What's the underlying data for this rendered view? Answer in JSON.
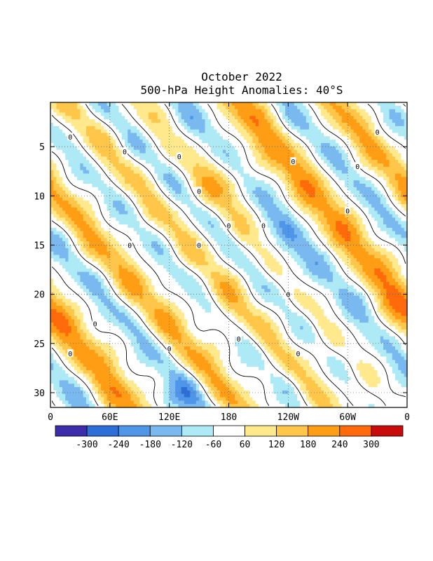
{
  "chart_data": {
    "type": "heatmap",
    "title": "October 2022",
    "subtitle": "500-hPa Height Anomalies: 40°S",
    "xlabel": "",
    "ylabel": "",
    "x_ticks": [
      "0",
      "60E",
      "120E",
      "180",
      "120W",
      "60W",
      "0"
    ],
    "y_ticks": [
      "5",
      "10",
      "15",
      "20",
      "25",
      "30"
    ],
    "y_range": [
      1,
      31
    ],
    "x_range_deg": [
      0,
      360
    ],
    "grid": "dotted",
    "contour_label": "0",
    "legend": {
      "placement": "bottom",
      "labels": [
        "-300",
        "-240",
        "-180",
        "-120",
        "-60",
        "60",
        "120",
        "180",
        "240",
        "300"
      ],
      "colors": [
        "#3c2daa",
        "#2e6ed8",
        "#4f95e8",
        "#7ab8f0",
        "#aeeaf5",
        "#ffffff",
        "#ffe98c",
        "#ffc64a",
        "#ff9e14",
        "#ff6a0a",
        "#c80c0c"
      ]
    },
    "bands": [
      {
        "lon0": 20,
        "day0": 1,
        "slope_deg_per_day": 8.5,
        "halfwidth_deg": 14,
        "value": 150
      },
      {
        "lon0": 55,
        "day0": 1,
        "slope_deg_per_day": 9,
        "halfwidth_deg": 12,
        "value": -130
      },
      {
        "lon0": 95,
        "day0": 1,
        "slope_deg_per_day": 8,
        "halfwidth_deg": 14,
        "value": 110
      },
      {
        "lon0": 135,
        "day0": 1,
        "slope_deg_per_day": 8.5,
        "halfwidth_deg": 13,
        "value": -150
      },
      {
        "lon0": 195,
        "day0": 1,
        "slope_deg_per_day": 8,
        "halfwidth_deg": 16,
        "value": 230
      },
      {
        "lon0": 240,
        "day0": 1,
        "slope_deg_per_day": 9,
        "halfwidth_deg": 12,
        "value": -140
      },
      {
        "lon0": 290,
        "day0": 1,
        "slope_deg_per_day": 8.5,
        "halfwidth_deg": 14,
        "value": 200
      },
      {
        "lon0": 340,
        "day0": 1,
        "slope_deg_per_day": 9,
        "halfwidth_deg": 12,
        "value": -110
      }
    ],
    "blobs": [
      {
        "lon": 175,
        "day": 8.5,
        "r_lon": 18,
        "r_day": 2.2,
        "value": 120
      },
      {
        "lon": 240,
        "day": 16,
        "r_lon": 10,
        "r_day": 2.5,
        "value": -80
      },
      {
        "lon": 131,
        "day": 30.5,
        "r_lon": 18,
        "r_day": 1.5,
        "value": -100
      },
      {
        "lon": 175,
        "day": 22,
        "r_lon": 14,
        "r_day": 2,
        "value": 60
      },
      {
        "lon": 348,
        "day": 22.5,
        "r_lon": 14,
        "r_day": 2.5,
        "value": 60
      }
    ]
  }
}
